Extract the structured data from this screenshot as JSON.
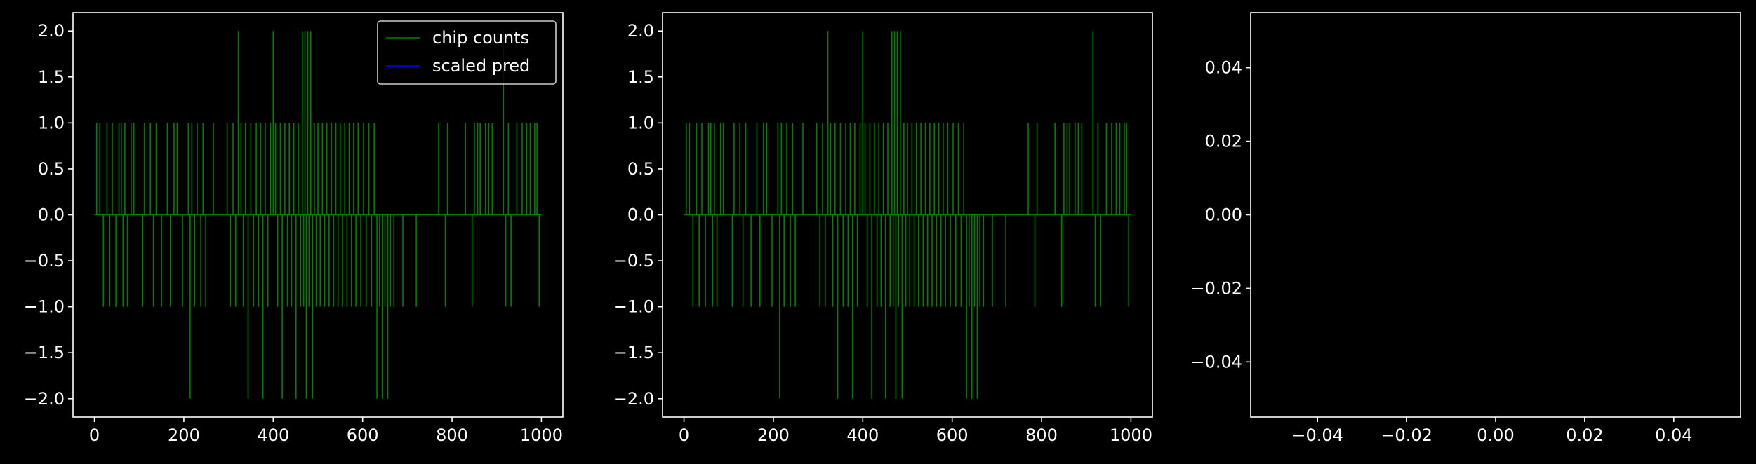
{
  "figure": {
    "background": "#000000",
    "foreground": "#ffffff"
  },
  "chart_data": [
    {
      "type": "line",
      "series": [
        {
          "name": "chip counts",
          "color": "#008000",
          "spikes": [
            [
              5,
              1
            ],
            [
              12,
              1
            ],
            [
              20,
              -1
            ],
            [
              28,
              1
            ],
            [
              34,
              -1
            ],
            [
              40,
              1
            ],
            [
              48,
              -1
            ],
            [
              55,
              1
            ],
            [
              60,
              1
            ],
            [
              64,
              -1
            ],
            [
              68,
              1
            ],
            [
              74,
              -1
            ],
            [
              82,
              1
            ],
            [
              88,
              1
            ],
            [
              108,
              -1
            ],
            [
              112,
              1
            ],
            [
              125,
              1
            ],
            [
              132,
              -1
            ],
            [
              138,
              1
            ],
            [
              150,
              -1
            ],
            [
              163,
              1
            ],
            [
              170,
              -1
            ],
            [
              178,
              1
            ],
            [
              185,
              1
            ],
            [
              197,
              -1
            ],
            [
              210,
              1
            ],
            [
              214,
              -2
            ],
            [
              218,
              1
            ],
            [
              224,
              -1
            ],
            [
              230,
              1
            ],
            [
              238,
              -1
            ],
            [
              243,
              1
            ],
            [
              249,
              -1
            ],
            [
              266,
              1
            ],
            [
              297,
              1
            ],
            [
              304,
              -1
            ],
            [
              310,
              1
            ],
            [
              316,
              -1
            ],
            [
              322,
              2
            ],
            [
              328,
              1
            ],
            [
              333,
              -1
            ],
            [
              338,
              1
            ],
            [
              344,
              -2
            ],
            [
              350,
              1
            ],
            [
              356,
              -1
            ],
            [
              362,
              1
            ],
            [
              367,
              -1
            ],
            [
              372,
              1
            ],
            [
              377,
              -2
            ],
            [
              382,
              1
            ],
            [
              388,
              -1
            ],
            [
              394,
              1
            ],
            [
              400,
              2
            ],
            [
              405,
              1
            ],
            [
              410,
              -1
            ],
            [
              416,
              1
            ],
            [
              420,
              -2
            ],
            [
              426,
              1
            ],
            [
              432,
              -1
            ],
            [
              436,
              1
            ],
            [
              441,
              -1
            ],
            [
              446,
              1
            ],
            [
              451,
              -2
            ],
            [
              456,
              1
            ],
            [
              461,
              -1
            ],
            [
              465,
              2
            ],
            [
              468,
              -1
            ],
            [
              471,
              2
            ],
            [
              474,
              -2
            ],
            [
              477,
              2
            ],
            [
              480,
              -1
            ],
            [
              484,
              2
            ],
            [
              488,
              -2
            ],
            [
              492,
              1
            ],
            [
              496,
              -1
            ],
            [
              500,
              1
            ],
            [
              505,
              -1
            ],
            [
              510,
              1
            ],
            [
              515,
              -1
            ],
            [
              520,
              1
            ],
            [
              525,
              -1
            ],
            [
              530,
              1
            ],
            [
              535,
              -1
            ],
            [
              540,
              1
            ],
            [
              545,
              -1
            ],
            [
              550,
              1
            ],
            [
              555,
              -1
            ],
            [
              560,
              1
            ],
            [
              565,
              -1
            ],
            [
              570,
              1
            ],
            [
              575,
              -1
            ],
            [
              580,
              1
            ],
            [
              585,
              -1
            ],
            [
              590,
              1
            ],
            [
              596,
              -1
            ],
            [
              602,
              1
            ],
            [
              608,
              -1
            ],
            [
              614,
              1
            ],
            [
              620,
              -1
            ],
            [
              626,
              1
            ],
            [
              632,
              -2
            ],
            [
              638,
              -1
            ],
            [
              644,
              -2
            ],
            [
              650,
              -1
            ],
            [
              656,
              -2
            ],
            [
              662,
              -1
            ],
            [
              670,
              -1
            ],
            [
              690,
              -1
            ],
            [
              720,
              -1
            ],
            [
              770,
              1
            ],
            [
              785,
              -1
            ],
            [
              790,
              1
            ],
            [
              830,
              1
            ],
            [
              845,
              -1
            ],
            [
              850,
              1
            ],
            [
              857,
              1
            ],
            [
              863,
              1
            ],
            [
              875,
              1
            ],
            [
              882,
              1
            ],
            [
              890,
              1
            ],
            [
              915,
              2
            ],
            [
              920,
              -1
            ],
            [
              926,
              1
            ],
            [
              932,
              -1
            ],
            [
              945,
              1
            ],
            [
              957,
              1
            ],
            [
              967,
              1
            ],
            [
              975,
              1
            ],
            [
              985,
              1
            ],
            [
              990,
              1
            ],
            [
              995,
              -1
            ]
          ]
        },
        {
          "name": "scaled pred",
          "color": "#0000ff",
          "values": []
        }
      ],
      "x_range": [
        0,
        1000
      ],
      "xlim": [
        -48,
        1048
      ],
      "ylim": [
        -2.2,
        2.2
      ],
      "x_ticks": [
        "0",
        "200",
        "400",
        "600",
        "800",
        "1000"
      ],
      "y_ticks": [
        "2.0",
        "1.5",
        "1.0",
        "0.5",
        "0.0",
        "−0.5",
        "−1.0",
        "−1.5",
        "−2.0"
      ],
      "legend": {
        "location": "top-right",
        "entries": [
          "chip counts",
          "scaled pred"
        ]
      }
    },
    {
      "type": "line",
      "series": [
        {
          "color": "#008000",
          "spikes": [
            [
              5,
              1
            ],
            [
              12,
              1
            ],
            [
              20,
              -1
            ],
            [
              28,
              1
            ],
            [
              34,
              -1
            ],
            [
              40,
              1
            ],
            [
              48,
              -1
            ],
            [
              55,
              1
            ],
            [
              60,
              1
            ],
            [
              64,
              -1
            ],
            [
              68,
              1
            ],
            [
              74,
              -1
            ],
            [
              82,
              1
            ],
            [
              88,
              1
            ],
            [
              108,
              -1
            ],
            [
              112,
              1
            ],
            [
              125,
              1
            ],
            [
              132,
              -1
            ],
            [
              138,
              1
            ],
            [
              150,
              -1
            ],
            [
              163,
              1
            ],
            [
              170,
              -1
            ],
            [
              178,
              1
            ],
            [
              185,
              1
            ],
            [
              197,
              -1
            ],
            [
              210,
              1
            ],
            [
              214,
              -2
            ],
            [
              218,
              1
            ],
            [
              224,
              -1
            ],
            [
              230,
              1
            ],
            [
              238,
              -1
            ],
            [
              243,
              1
            ],
            [
              249,
              -1
            ],
            [
              266,
              1
            ],
            [
              297,
              1
            ],
            [
              304,
              -1
            ],
            [
              310,
              1
            ],
            [
              316,
              -1
            ],
            [
              322,
              2
            ],
            [
              328,
              1
            ],
            [
              333,
              -1
            ],
            [
              338,
              1
            ],
            [
              344,
              -2
            ],
            [
              350,
              1
            ],
            [
              356,
              -1
            ],
            [
              362,
              1
            ],
            [
              367,
              -1
            ],
            [
              372,
              1
            ],
            [
              377,
              -2
            ],
            [
              382,
              1
            ],
            [
              388,
              -1
            ],
            [
              394,
              1
            ],
            [
              400,
              2
            ],
            [
              405,
              1
            ],
            [
              410,
              -1
            ],
            [
              416,
              1
            ],
            [
              420,
              -2
            ],
            [
              426,
              1
            ],
            [
              432,
              -1
            ],
            [
              436,
              1
            ],
            [
              441,
              -1
            ],
            [
              446,
              1
            ],
            [
              451,
              -2
            ],
            [
              456,
              1
            ],
            [
              461,
              -1
            ],
            [
              465,
              2
            ],
            [
              468,
              -1
            ],
            [
              471,
              2
            ],
            [
              474,
              -2
            ],
            [
              477,
              2
            ],
            [
              480,
              -1
            ],
            [
              484,
              2
            ],
            [
              488,
              -2
            ],
            [
              492,
              1
            ],
            [
              496,
              -1
            ],
            [
              500,
              1
            ],
            [
              505,
              -1
            ],
            [
              510,
              1
            ],
            [
              515,
              -1
            ],
            [
              520,
              1
            ],
            [
              525,
              -1
            ],
            [
              530,
              1
            ],
            [
              535,
              -1
            ],
            [
              540,
              1
            ],
            [
              545,
              -1
            ],
            [
              550,
              1
            ],
            [
              555,
              -1
            ],
            [
              560,
              1
            ],
            [
              565,
              -1
            ],
            [
              570,
              1
            ],
            [
              575,
              -1
            ],
            [
              580,
              1
            ],
            [
              585,
              -1
            ],
            [
              590,
              1
            ],
            [
              596,
              -1
            ],
            [
              602,
              1
            ],
            [
              608,
              -1
            ],
            [
              614,
              1
            ],
            [
              620,
              -1
            ],
            [
              626,
              1
            ],
            [
              632,
              -2
            ],
            [
              638,
              -1
            ],
            [
              644,
              -2
            ],
            [
              650,
              -1
            ],
            [
              656,
              -2
            ],
            [
              662,
              -1
            ],
            [
              670,
              -1
            ],
            [
              690,
              -1
            ],
            [
              720,
              -1
            ],
            [
              770,
              1
            ],
            [
              785,
              -1
            ],
            [
              790,
              1
            ],
            [
              830,
              1
            ],
            [
              845,
              -1
            ],
            [
              850,
              1
            ],
            [
              857,
              1
            ],
            [
              863,
              1
            ],
            [
              875,
              1
            ],
            [
              882,
              1
            ],
            [
              890,
              1
            ],
            [
              915,
              2
            ],
            [
              920,
              -1
            ],
            [
              926,
              1
            ],
            [
              932,
              -1
            ],
            [
              945,
              1
            ],
            [
              957,
              1
            ],
            [
              967,
              1
            ],
            [
              975,
              1
            ],
            [
              985,
              1
            ],
            [
              990,
              1
            ],
            [
              995,
              -1
            ]
          ]
        }
      ],
      "x_range": [
        0,
        1000
      ],
      "xlim": [
        -48,
        1048
      ],
      "ylim": [
        -2.2,
        2.2
      ],
      "x_ticks": [
        "0",
        "200",
        "400",
        "600",
        "800",
        "1000"
      ],
      "y_ticks": [
        "2.0",
        "1.5",
        "1.0",
        "0.5",
        "0.0",
        "−0.5",
        "−1.0",
        "−1.5",
        "−2.0"
      ]
    },
    {
      "type": "line",
      "series": [],
      "xlim": [
        -0.055,
        0.055
      ],
      "ylim": [
        -0.055,
        0.055
      ],
      "x_ticks": [
        "−0.04",
        "−0.02",
        "0.00",
        "0.02",
        "0.04"
      ],
      "y_ticks": [
        "0.04",
        "0.02",
        "0.00",
        "−0.02",
        "−0.04"
      ]
    }
  ]
}
